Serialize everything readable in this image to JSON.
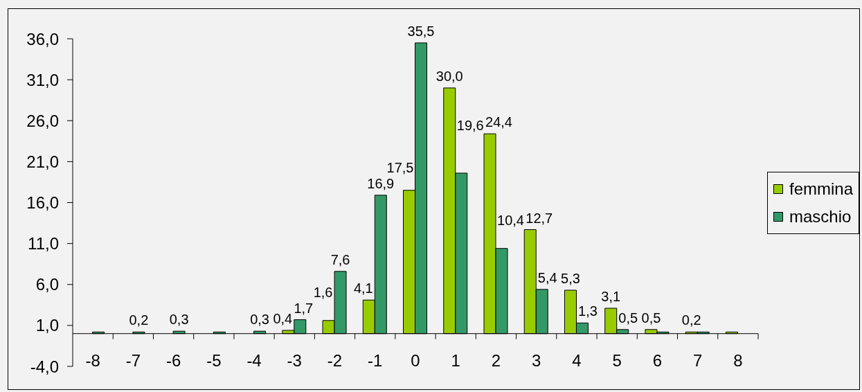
{
  "chart_data": {
    "type": "bar",
    "categories": [
      "-8",
      "-7",
      "-6",
      "-5",
      "-4",
      "-3",
      "-2",
      "-1",
      "0",
      "1",
      "2",
      "3",
      "4",
      "5",
      "6",
      "7",
      "8"
    ],
    "series": [
      {
        "name": "femmina",
        "color": "#99cc00",
        "values": [
          null,
          null,
          null,
          null,
          null,
          0.4,
          1.6,
          4.1,
          17.5,
          30.0,
          24.4,
          12.7,
          5.3,
          3.1,
          0.5,
          0.2,
          0.2
        ],
        "value_labels": [
          null,
          null,
          null,
          null,
          null,
          "0,4",
          "1,6",
          "4,1",
          "17,5",
          "30,0",
          "24,4",
          "12,7",
          "5,3",
          "3,1",
          "0,5",
          "0,2",
          null
        ]
      },
      {
        "name": "maschio",
        "color": "#339966",
        "values": [
          0.2,
          0.2,
          0.3,
          0.2,
          0.3,
          1.7,
          7.6,
          16.9,
          35.5,
          19.6,
          10.4,
          5.4,
          1.3,
          0.5,
          0.2,
          0.2,
          null
        ],
        "value_labels": [
          null,
          "0,2",
          "0,3",
          null,
          "0,3",
          "1,7",
          "7,6",
          "16,9",
          "35,5",
          "19,6",
          "10,4",
          "5,4",
          "1,3",
          "0,5",
          null,
          null,
          null
        ]
      }
    ],
    "ylim": [
      -4,
      36
    ],
    "yticks": [
      {
        "value": -4,
        "label": "-4,0"
      },
      {
        "value": 1,
        "label": "1,0"
      },
      {
        "value": 6,
        "label": "6,0"
      },
      {
        "value": 11,
        "label": "11,0"
      },
      {
        "value": 16,
        "label": "16,0"
      },
      {
        "value": 21,
        "label": "21,0"
      },
      {
        "value": 26,
        "label": "26,0"
      },
      {
        "value": 31,
        "label": "31,0"
      },
      {
        "value": 36,
        "label": "36,0"
      }
    ],
    "legend": "right"
  }
}
